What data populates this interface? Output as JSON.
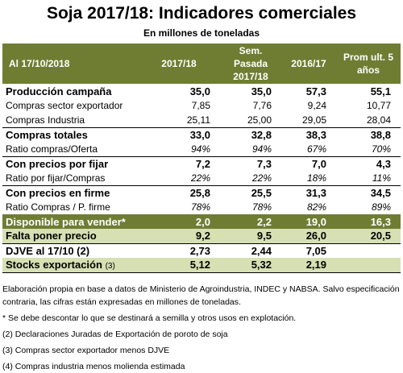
{
  "title": "Soja 2017/18: Indicadores comerciales",
  "subtitle": "En millones de toneladas",
  "header": {
    "date_label": "Al 17/10/2018",
    "col1": "2017/18",
    "col2": "Sem. Pasada 2017/18",
    "col3": "2016/17",
    "col4": "Prom ult. 5 años"
  },
  "rows": [
    {
      "label": "Producción campaña",
      "v": [
        "35,0",
        "35,0",
        "57,3",
        "55,1"
      ]
    },
    {
      "label": "Compras sector exportador",
      "v": [
        "7,85",
        "7,76",
        "9,24",
        "10,77"
      ]
    },
    {
      "label": "Compras Industria",
      "v": [
        "25,11",
        "25,00",
        "29,05",
        "28,04"
      ]
    },
    {
      "label": "Compras totales",
      "v": [
        "33,0",
        "32,8",
        "38,3",
        "38,8"
      ]
    },
    {
      "label": "Ratio compras/Oferta",
      "v": [
        "94%",
        "94%",
        "67%",
        "70%"
      ]
    },
    {
      "label": "Con precios por fijar",
      "v": [
        "7,2",
        "7,3",
        "7,0",
        "4,3"
      ]
    },
    {
      "label": "Ratio por fijar/Compras",
      "v": [
        "22%",
        "22%",
        "18%",
        "11%"
      ]
    },
    {
      "label": "Con precios en firme",
      "v": [
        "25,8",
        "25,5",
        "31,3",
        "34,5"
      ]
    },
    {
      "label": "Ratio Compras / P. firme",
      "v": [
        "78%",
        "78%",
        "82%",
        "89%"
      ]
    },
    {
      "label": "Disponible para vender*",
      "v": [
        "2,0",
        "2,2",
        "19,0",
        "16,3"
      ]
    },
    {
      "label": "Falta poner precio",
      "v": [
        "9,2",
        "9,5",
        "26,0",
        "20,5"
      ]
    },
    {
      "label": "DJVE al 17/10 (2)",
      "v": [
        "2,73",
        "2,44",
        "7,05",
        ""
      ]
    },
    {
      "label": "Stocks exportación",
      "label_suffix": "(3)",
      "v": [
        "5,12",
        "5,32",
        "2,19",
        ""
      ]
    }
  ],
  "notes": [
    "Elaboración propia en base a datos de Ministerio de Agroindustria, INDEC y NABSA. Salvo especificación contraria, las cifras están expresadas en millones de toneladas.",
    "* Se debe descontar lo que se destinará a semilla y otros usos en explotación.",
    "(2) Declaraciones Juradas de Exportación de poroto de soja",
    "(3) Compras sector exportador menos DJVE",
    "(4) Compras industria menos molienda estimada"
  ],
  "colors": {
    "header_green": "#6f7d33",
    "light_green": "#d7e0b3"
  }
}
